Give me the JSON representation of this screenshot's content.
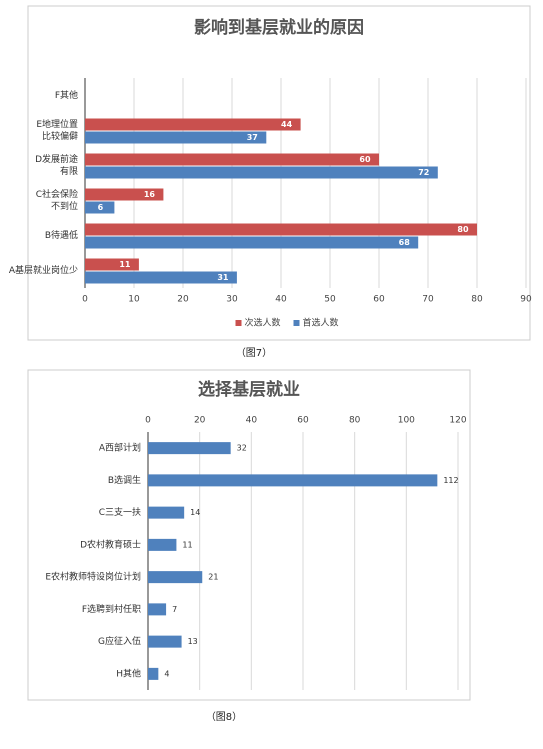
{
  "chart_data": [
    {
      "type": "bar",
      "orientation": "horizontal",
      "title": "影响到基层就业的原因",
      "caption": "（图7）",
      "categories": [
        "A基层就业岗位少",
        "B待遇低",
        [
          "C社会保险",
          "不到位"
        ],
        [
          "D发展前途",
          "有限"
        ],
        [
          "E地理位置",
          "比较偏僻"
        ],
        "F其他"
      ],
      "series": [
        {
          "name": "次选人数",
          "color": "#c9504e",
          "values": [
            11,
            80,
            16,
            60,
            44,
            null
          ]
        },
        {
          "name": "首选人数",
          "color": "#4f81bd",
          "values": [
            31,
            68,
            6,
            72,
            37,
            null
          ]
        }
      ],
      "xlim": [
        0,
        90
      ],
      "xticks": [
        0,
        10,
        20,
        30,
        40,
        50,
        60,
        70,
        80,
        90
      ],
      "grid": true,
      "legend": "bottom",
      "label_position": "inside",
      "axis_position": "bottom"
    },
    {
      "type": "bar",
      "orientation": "horizontal",
      "title": "选择基层就业",
      "caption": "（图8）",
      "categories": [
        "A西部计划",
        "B选调生",
        "C三支一扶",
        "D农村教育硕士",
        "E农村教师特设岗位计划",
        "F选聘到村任职",
        "G应征入伍",
        "H其他"
      ],
      "series": [
        {
          "name": "选择基层就业",
          "color": "#4f81bd",
          "values": [
            32,
            112,
            14,
            11,
            21,
            7,
            13,
            4
          ]
        }
      ],
      "xlim": [
        0,
        120
      ],
      "xticks": [
        0,
        20,
        40,
        60,
        80,
        100,
        120
      ],
      "grid": true,
      "label_position": "outside",
      "axis_position": "top",
      "reverse_categories": true
    }
  ]
}
